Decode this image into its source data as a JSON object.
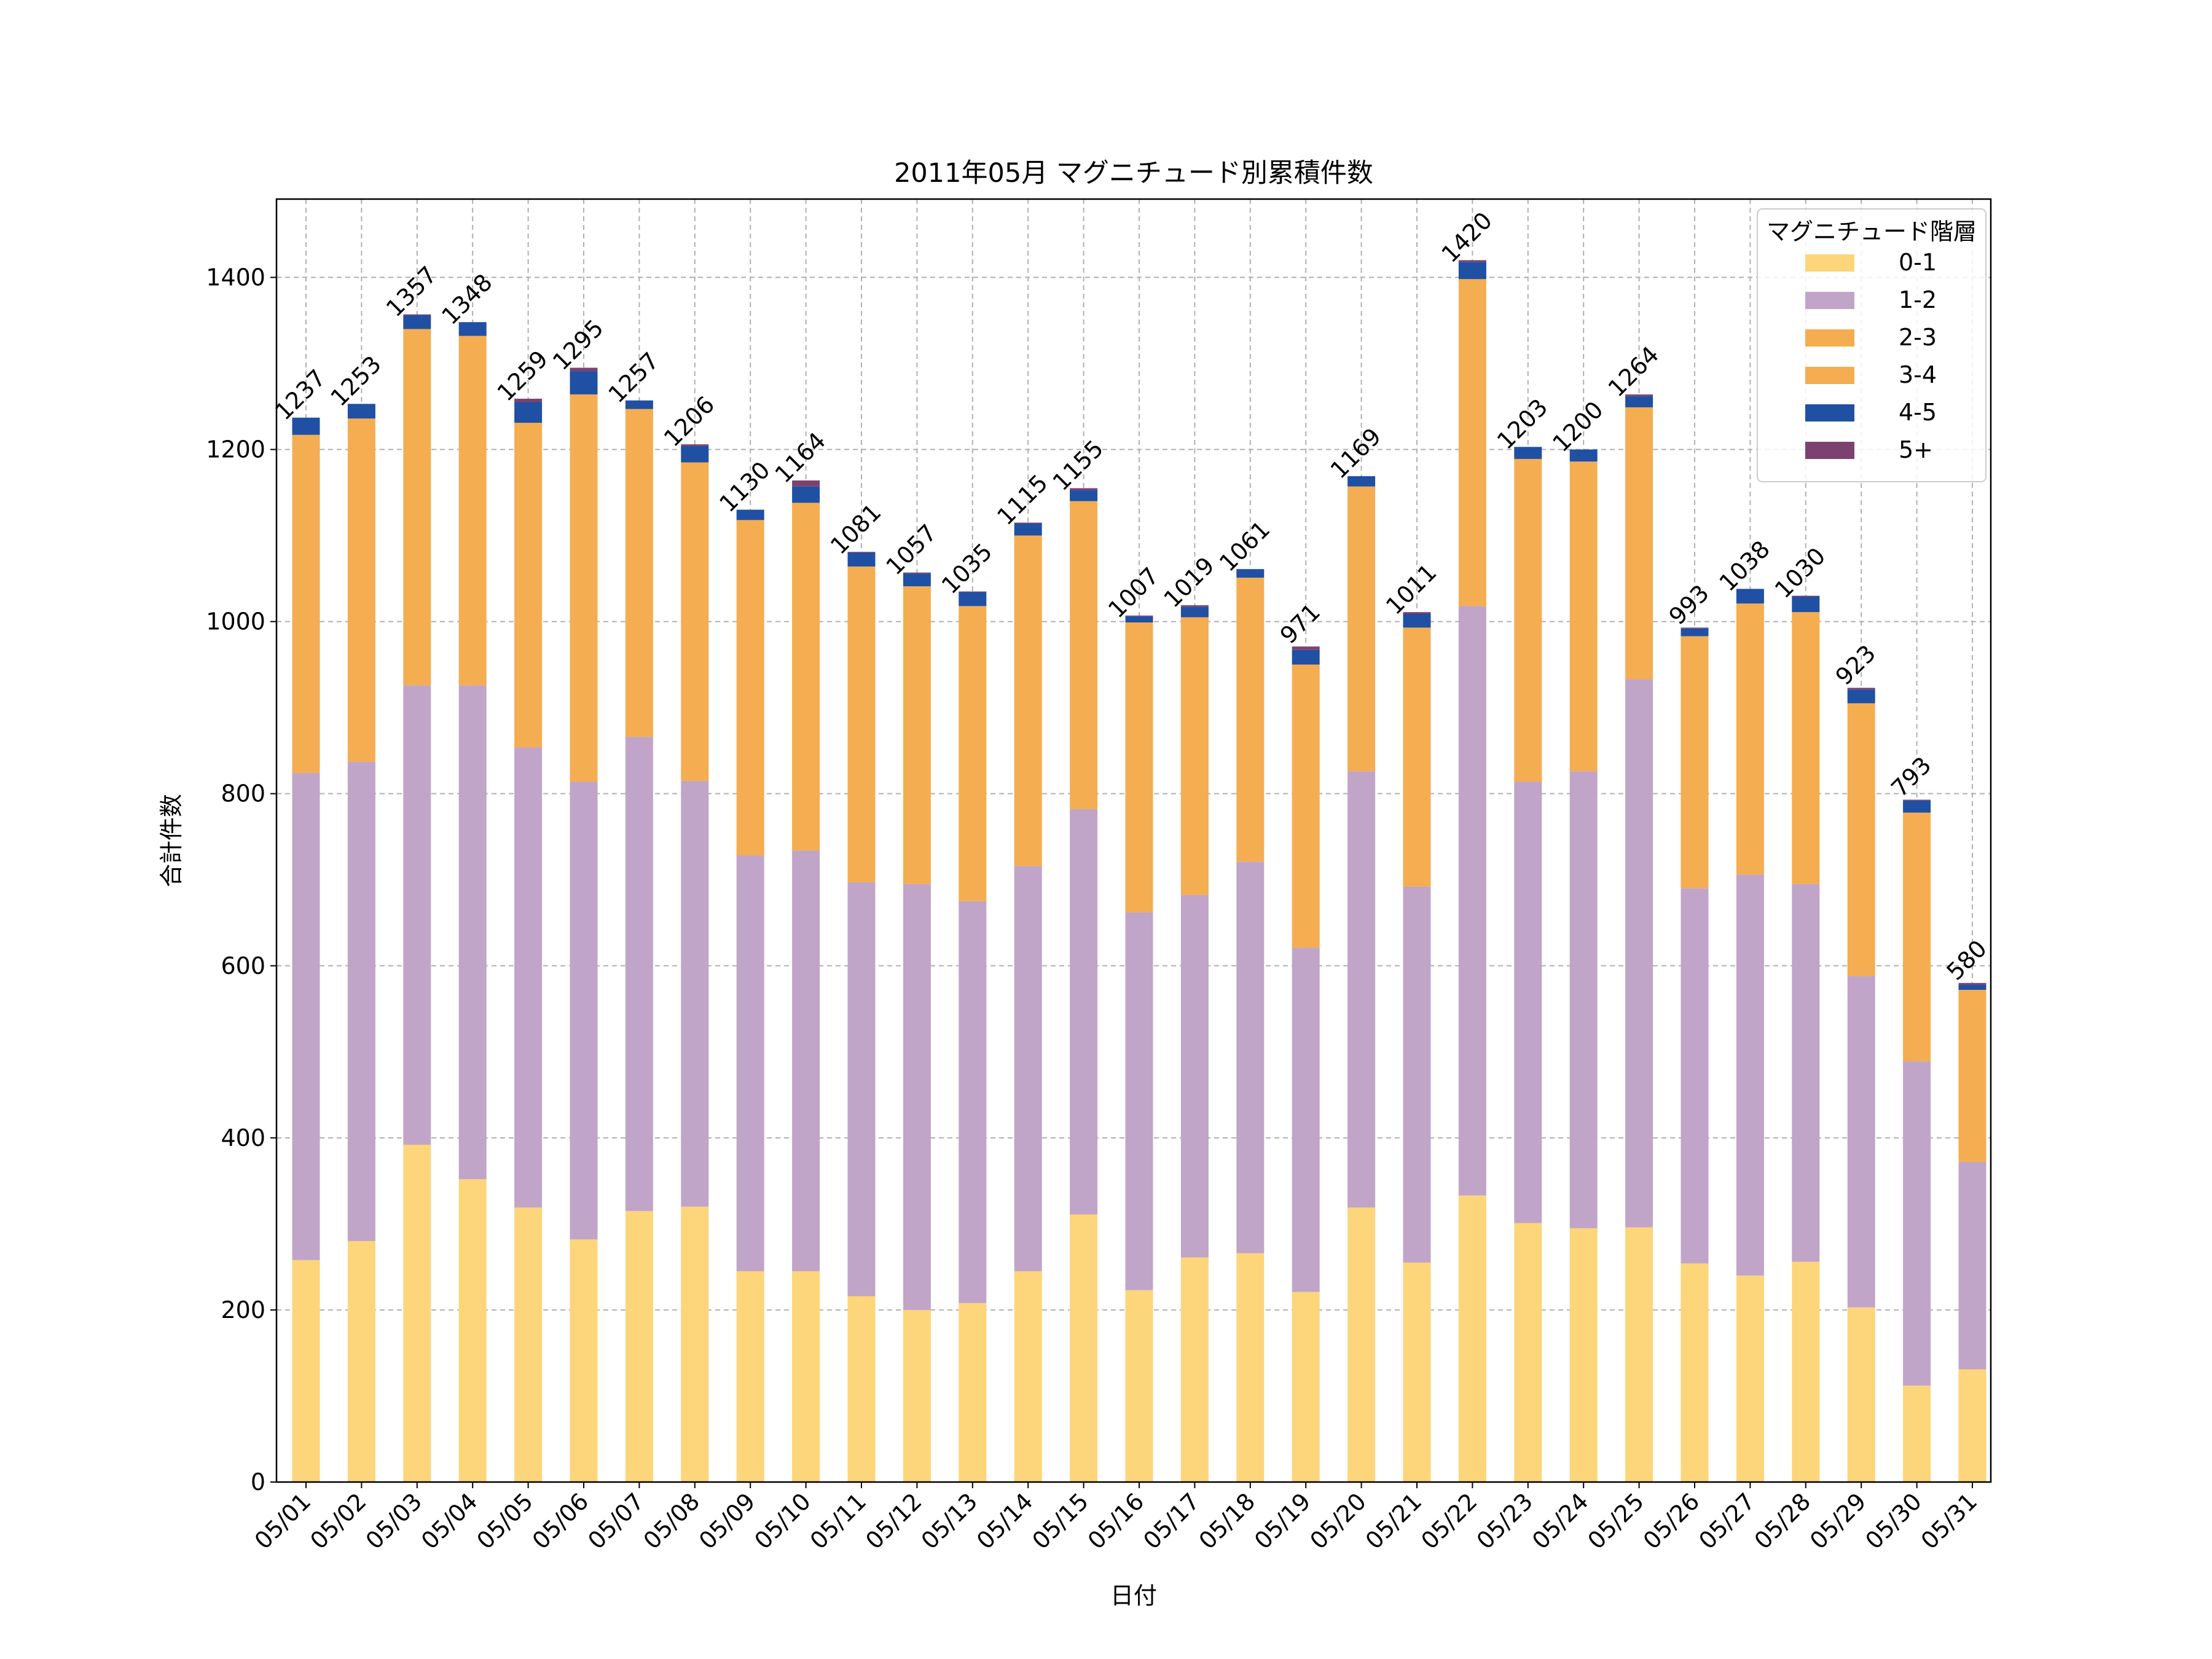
{
  "chart_data": {
    "type": "bar",
    "stacked": true,
    "title": "2011年05月 マグニチュード別累積件数",
    "xlabel": "日付",
    "ylabel": "合計件数",
    "ylim": [
      0,
      1491
    ],
    "yticks": [
      0,
      200,
      400,
      600,
      800,
      1000,
      1200,
      1400
    ],
    "grid": true,
    "legend_title": "マグニチュード階層",
    "legend_position": "top-right",
    "categories": [
      "05/01",
      "05/02",
      "05/03",
      "05/04",
      "05/05",
      "05/06",
      "05/07",
      "05/08",
      "05/09",
      "05/10",
      "05/11",
      "05/12",
      "05/13",
      "05/14",
      "05/15",
      "05/16",
      "05/17",
      "05/18",
      "05/19",
      "05/20",
      "05/21",
      "05/22",
      "05/23",
      "05/24",
      "05/25",
      "05/26",
      "05/27",
      "05/28",
      "05/29",
      "05/30",
      "05/31"
    ],
    "series": [
      {
        "name": "0-1",
        "color": "#fdd57a",
        "values": [
          258,
          280,
          392,
          352,
          319,
          282,
          315,
          320,
          245,
          245,
          216,
          200,
          208,
          245,
          311,
          223,
          261,
          266,
          221,
          319,
          255,
          333,
          301,
          295,
          296,
          254,
          240,
          256,
          203,
          112,
          131
        ]
      },
      {
        "name": "1-2",
        "color": "#c0a5c8",
        "values": [
          566,
          557,
          534,
          574,
          535,
          532,
          551,
          495,
          483,
          489,
          481,
          495,
          467,
          471,
          471,
          439,
          421,
          455,
          400,
          507,
          437,
          685,
          513,
          531,
          637,
          436,
          466,
          439,
          385,
          377,
          241
        ]
      },
      {
        "name": "2-3",
        "color": "#f4ad51",
        "values": [
          393,
          399,
          414,
          406,
          377,
          450,
          381,
          370,
          390,
          404,
          367,
          346,
          343,
          384,
          358,
          337,
          323,
          330,
          329,
          331,
          301,
          380,
          375,
          360,
          316,
          293,
          315,
          316,
          317,
          289,
          200
        ]
      },
      {
        "name": "3-4",
        "color": "#f4ad51",
        "values": [
          0,
          0,
          0,
          0,
          0,
          0,
          0,
          0,
          0,
          0,
          0,
          0,
          0,
          0,
          0,
          0,
          0,
          0,
          0,
          0,
          0,
          0,
          0,
          0,
          0,
          0,
          0,
          0,
          0,
          0,
          0
        ]
      },
      {
        "name": "4-5",
        "color": "#1f50a3",
        "values": [
          20,
          17,
          16,
          16,
          24,
          27,
          10,
          19,
          12,
          19,
          16,
          15,
          16,
          14,
          13,
          7,
          12,
          10,
          17,
          12,
          16,
          20,
          14,
          14,
          13,
          9,
          17,
          18,
          16,
          14,
          6
        ]
      },
      {
        "name": "5+",
        "color": "#7b4270",
        "values": [
          0,
          0,
          1,
          0,
          4,
          4,
          0,
          2,
          0,
          7,
          1,
          1,
          1,
          1,
          2,
          1,
          2,
          0,
          4,
          0,
          2,
          2,
          0,
          0,
          2,
          1,
          0,
          1,
          2,
          1,
          2
        ]
      }
    ],
    "totals": [
      1237,
      1253,
      1357,
      1348,
      1259,
      1295,
      1257,
      1206,
      1130,
      1164,
      1081,
      1057,
      1035,
      1115,
      1155,
      1007,
      1019,
      1061,
      971,
      1169,
      1011,
      1420,
      1203,
      1200,
      1264,
      993,
      1038,
      1030,
      923,
      793,
      580
    ]
  }
}
